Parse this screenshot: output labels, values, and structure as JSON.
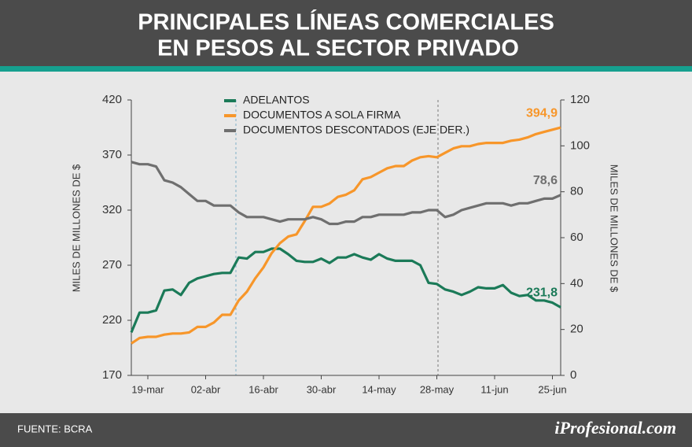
{
  "chart_data": {
    "type": "line",
    "title": [
      "PRINCIPALES LÍNEAS COMERCIALES",
      "EN PESOS AL SECTOR PRIVADO"
    ],
    "ylabel": "MILES DE MILLONES DE $",
    "y2label": "MILES DE MILLONES DE $",
    "source": "FUENTE: BCRA",
    "brand": "iProfesional.com",
    "categories": [
      null,
      null,
      "19-mar",
      null,
      null,
      null,
      null,
      null,
      null,
      "02-abr",
      null,
      null,
      null,
      null,
      null,
      null,
      "16-abr",
      null,
      null,
      null,
      null,
      null,
      null,
      "30-abr",
      null,
      null,
      null,
      null,
      null,
      null,
      "14-may",
      null,
      null,
      null,
      null,
      null,
      null,
      "28-may",
      null,
      null,
      null,
      null,
      null,
      null,
      "11-jun",
      null,
      null,
      null,
      null,
      null,
      null,
      "25-jun",
      null
    ],
    "ylim": [
      170,
      420
    ],
    "yticks": [
      170,
      220,
      270,
      320,
      370,
      420
    ],
    "y2lim": [
      0,
      120
    ],
    "y2ticks": [
      0,
      20,
      40,
      60,
      80,
      100,
      120
    ],
    "series": [
      {
        "name": "ADELANTOS",
        "color": "#1b7a58",
        "values": [
          209,
          227,
          227,
          229,
          247,
          248,
          243,
          254,
          258,
          260,
          262,
          263,
          263,
          277,
          276,
          282,
          282,
          285,
          285,
          280,
          274,
          273,
          273,
          276,
          272,
          277,
          277,
          280,
          277,
          275,
          280,
          276,
          274,
          274,
          274,
          270,
          254,
          253,
          248,
          246,
          243,
          246,
          250,
          249,
          249,
          252,
          245,
          242,
          243,
          238,
          238,
          236,
          231.8
        ],
        "value_labels": [
          null,
          null,
          null,
          null,
          null,
          null,
          null,
          null,
          null,
          null,
          null,
          null,
          null,
          null,
          null,
          null,
          null,
          null,
          null,
          null,
          null,
          null,
          null,
          null,
          null,
          null,
          null,
          null,
          null,
          null,
          null,
          null,
          null,
          null,
          null,
          null,
          null,
          null,
          null,
          null,
          null,
          null,
          null,
          null,
          null,
          null,
          null,
          null,
          null,
          null,
          null,
          null,
          "231,8"
        ]
      },
      {
        "name": "DOCUMENTOS A SOLA FIRMA",
        "color": "#f7962a",
        "values": [
          199,
          204,
          205,
          205,
          207,
          208,
          208,
          209,
          214,
          214,
          218,
          225,
          225,
          238,
          246,
          258,
          268,
          281,
          290,
          296,
          298,
          310,
          323,
          323,
          326,
          332,
          334,
          338,
          348,
          350,
          354,
          358,
          360,
          360,
          365,
          368,
          369,
          368,
          372,
          376,
          378,
          378,
          380,
          381,
          381,
          381,
          383,
          384,
          386,
          389,
          391,
          393,
          394.9
        ],
        "value_labels": [
          null,
          null,
          null,
          null,
          null,
          null,
          null,
          null,
          null,
          null,
          null,
          null,
          null,
          null,
          null,
          null,
          null,
          null,
          null,
          null,
          null,
          null,
          null,
          null,
          null,
          null,
          null,
          null,
          null,
          null,
          null,
          null,
          null,
          null,
          null,
          null,
          null,
          null,
          null,
          null,
          null,
          null,
          null,
          null,
          null,
          null,
          null,
          null,
          null,
          null,
          null,
          null,
          "394,9"
        ]
      },
      {
        "name": "DOCUMENTOS DESCONTADOS (EJE DER.)",
        "color": "#6f6f6f",
        "axis": "y2",
        "values": [
          93,
          92,
          92,
          91,
          85,
          84,
          82,
          79,
          76,
          76,
          74,
          74,
          74,
          71,
          69,
          69,
          69,
          68,
          67,
          68,
          68,
          68,
          69,
          68,
          66,
          66,
          67,
          67,
          69,
          69,
          70,
          70,
          70,
          70,
          71,
          71,
          72,
          72,
          69,
          70,
          72,
          73,
          74,
          75,
          75,
          75,
          74,
          75,
          75,
          76,
          77,
          77,
          78.6
        ],
        "value_labels": [
          null,
          null,
          null,
          null,
          null,
          null,
          null,
          null,
          null,
          null,
          null,
          null,
          null,
          null,
          null,
          null,
          null,
          null,
          null,
          null,
          null,
          null,
          null,
          null,
          null,
          null,
          null,
          null,
          null,
          null,
          null,
          null,
          null,
          null,
          null,
          null,
          null,
          null,
          null,
          null,
          null,
          null,
          null,
          null,
          null,
          null,
          null,
          null,
          null,
          null,
          null,
          null,
          "78,6"
        ]
      }
    ]
  }
}
